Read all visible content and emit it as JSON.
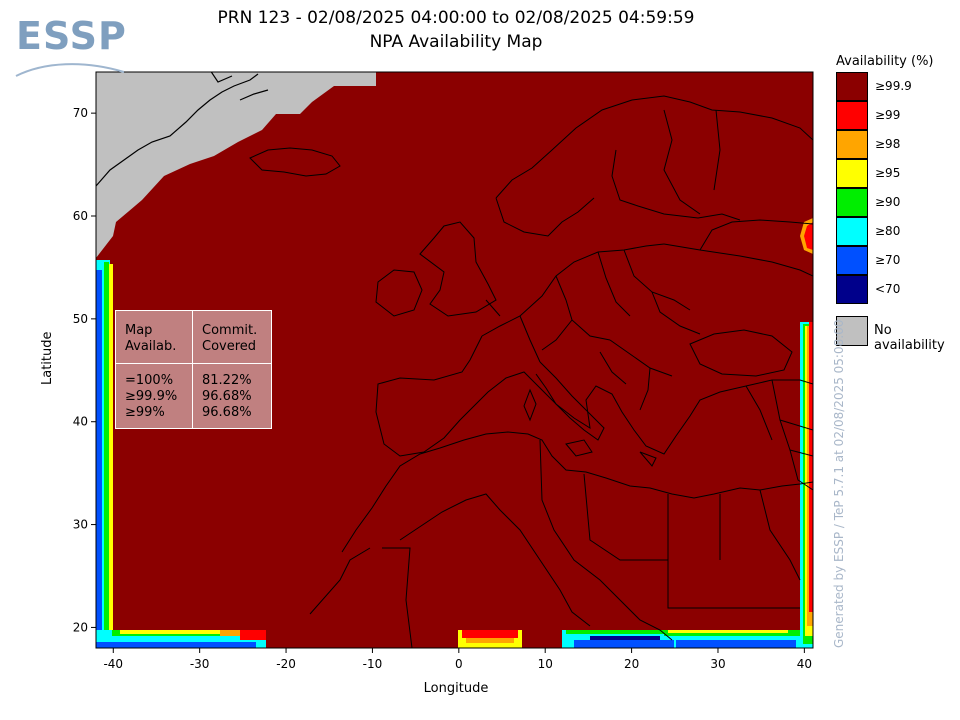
{
  "logo": {
    "text": "ESSP"
  },
  "title": {
    "line1": "PRN 123 - 02/08/2025 04:00:00 to 02/08/2025 04:59:59",
    "line2": "NPA Availability Map"
  },
  "axes": {
    "xlabel": "Longitude",
    "ylabel": "Latitude",
    "xticks": [
      "-40",
      "-30",
      "-20",
      "-10",
      "0",
      "10",
      "20",
      "30",
      "40"
    ],
    "yticks": [
      "70",
      "60",
      "50",
      "40",
      "30",
      "20"
    ],
    "lon_range": [
      -42,
      41
    ],
    "lat_range": [
      18,
      74
    ]
  },
  "legend": {
    "title": "Availability (%)",
    "items": [
      {
        "label": "≥99.9",
        "color": "#8b0000"
      },
      {
        "label": "≥99",
        "color": "#ff0000"
      },
      {
        "label": "≥98",
        "color": "#ffa500"
      },
      {
        "label": "≥95",
        "color": "#ffff00"
      },
      {
        "label": "≥90",
        "color": "#00ee00"
      },
      {
        "label": "≥80",
        "color": "#00ffff"
      },
      {
        "label": "≥70",
        "color": "#0050ff"
      },
      {
        "label": "<70",
        "color": "#00008b"
      }
    ],
    "no_availability": {
      "label": "No availability",
      "color": "#c0c0c0"
    }
  },
  "stats": {
    "header_col1": [
      "Map",
      "Availab."
    ],
    "header_col2": [
      "Commit.",
      "Covered"
    ],
    "rows": [
      {
        "threshold": "=100%",
        "value": "81.22%"
      },
      {
        "threshold": "≥99.9%",
        "value": "96.68%"
      },
      {
        "threshold": "≥99%",
        "value": "96.68%"
      }
    ]
  },
  "credit": "Generated by ESSP / TeP 5.7.1 at 02/08/2025 05:08:00"
}
